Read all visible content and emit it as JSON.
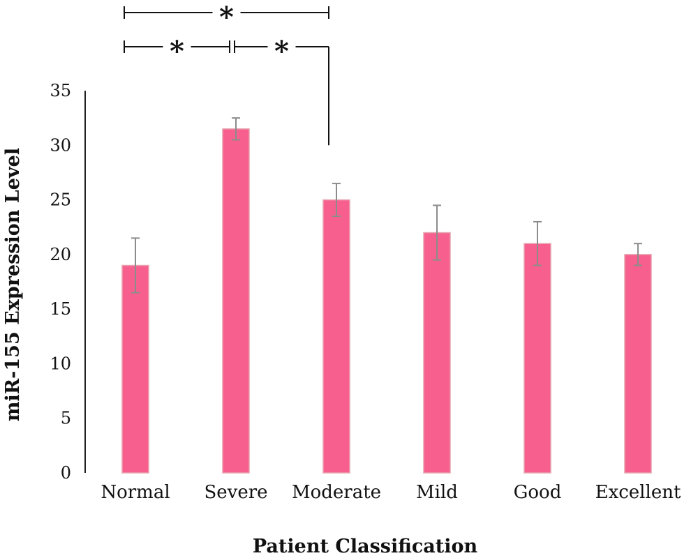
{
  "chart_data": {
    "type": "bar",
    "categories": [
      "Normal",
      "Severe",
      "Moderate",
      "Mild",
      "Good",
      "Excellent"
    ],
    "values": [
      19,
      31.5,
      25,
      22,
      21,
      20
    ],
    "error_low": [
      16.5,
      30.5,
      23.5,
      19.5,
      19,
      19
    ],
    "error_high": [
      21.5,
      32.5,
      26.5,
      24.5,
      23,
      21
    ],
    "xlabel": "Patient Classification",
    "ylabel": "miR-155 Expression Level",
    "ylim": [
      0,
      35
    ],
    "yticks": [
      0,
      5,
      10,
      15,
      20,
      25,
      30,
      35
    ],
    "grid": false,
    "bar_color": "#f7608e",
    "bar_edge_color": "#e7a2ae",
    "errorbar_color": "#8c8c8c",
    "significance": [
      {
        "from": "Normal",
        "to": "Severe",
        "label": "*"
      },
      {
        "from": "Severe",
        "to": "Moderate",
        "label": "*"
      },
      {
        "from": "Normal",
        "to": "Moderate",
        "label": "*"
      }
    ]
  }
}
